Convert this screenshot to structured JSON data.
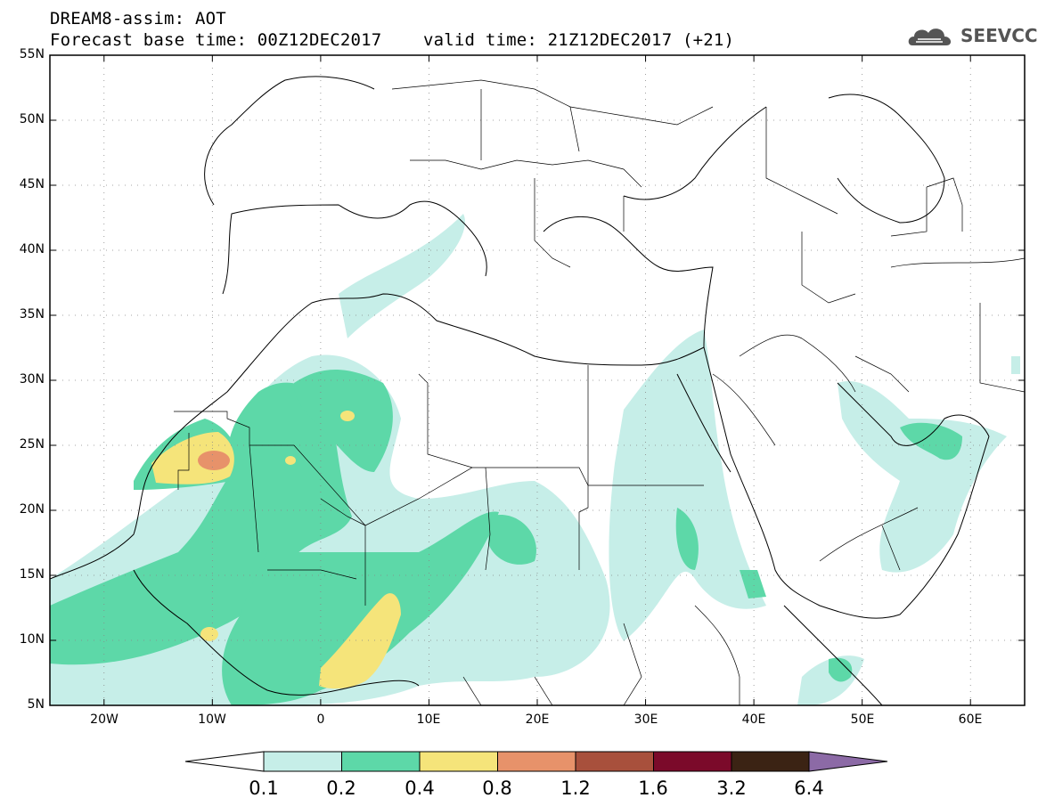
{
  "header": {
    "title_line1": "DREAM8-assim: AOT",
    "title_line2": "Forecast base time: 00Z12DEC2017    valid time: 21Z12DEC2017 (+21)",
    "logo_text": "SEEVCCC"
  },
  "map": {
    "lon_range": [
      -25,
      65
    ],
    "lat_range": [
      5,
      55
    ],
    "lat_labels": [
      "55N",
      "50N",
      "45N",
      "40N",
      "35N",
      "30N",
      "25N",
      "20N",
      "15N",
      "10N",
      "5N"
    ],
    "lon_labels": [
      "20W",
      "10W",
      "0",
      "10E",
      "20E",
      "30E",
      "40E",
      "50E",
      "60E"
    ],
    "grid": true
  },
  "colorbar": {
    "colors": [
      "#ffffff",
      "#c6eee8",
      "#5dd8a8",
      "#f5e47a",
      "#e7926a",
      "#a8503c",
      "#7b0a2a",
      "#3b2314",
      "#8c6aa6"
    ],
    "labels": [
      "0.1",
      "0.2",
      "0.4",
      "0.8",
      "1.2",
      "1.6",
      "3.2",
      "6.4"
    ]
  },
  "chart_data": {
    "type": "heatmap",
    "variable": "AOT",
    "levels": [
      0.1,
      0.2,
      0.4,
      0.8,
      1.2,
      1.6,
      3.2,
      6.4
    ],
    "xlim": [
      -25,
      65
    ],
    "ylim": [
      5,
      55
    ]
  }
}
